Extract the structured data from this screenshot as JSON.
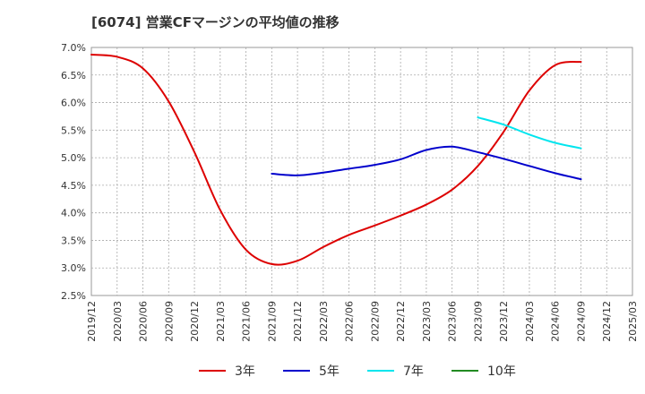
{
  "header": {
    "title": "[6074]  営業CFマージンの平均値の推移"
  },
  "chart_data": {
    "type": "line",
    "title": "[6074]  営業CFマージンの平均値の推移",
    "xlabel": "",
    "ylabel": "",
    "x_ticks": [
      "2019/12",
      "2020/03",
      "2020/06",
      "2020/09",
      "2020/12",
      "2021/03",
      "2021/06",
      "2021/09",
      "2021/12",
      "2022/03",
      "2022/06",
      "2022/09",
      "2022/12",
      "2023/03",
      "2023/06",
      "2023/09",
      "2023/12",
      "2024/03",
      "2024/06",
      "2024/09",
      "2024/12",
      "2025/03"
    ],
    "y_ticks": [
      "2.5%",
      "3.0%",
      "3.5%",
      "4.0%",
      "4.5%",
      "5.0%",
      "5.5%",
      "6.0%",
      "6.5%",
      "7.0%"
    ],
    "ylim": [
      2.5,
      7.0
    ],
    "grid": true,
    "legend_position": "bottom",
    "series": [
      {
        "name": "3年",
        "color": "#dd0000",
        "points": [
          [
            "2019/12",
            6.87
          ],
          [
            "2020/03",
            6.83
          ],
          [
            "2020/06",
            6.62
          ],
          [
            "2020/09",
            6.02
          ],
          [
            "2020/12",
            5.1
          ],
          [
            "2021/03",
            4.05
          ],
          [
            "2021/06",
            3.33
          ],
          [
            "2021/09",
            3.07
          ],
          [
            "2021/12",
            3.13
          ],
          [
            "2022/03",
            3.38
          ],
          [
            "2022/06",
            3.6
          ],
          [
            "2022/09",
            3.77
          ],
          [
            "2022/12",
            3.95
          ],
          [
            "2023/03",
            4.15
          ],
          [
            "2023/06",
            4.42
          ],
          [
            "2023/09",
            4.85
          ],
          [
            "2023/12",
            5.47
          ],
          [
            "2024/03",
            6.22
          ],
          [
            "2024/06",
            6.68
          ],
          [
            "2024/09",
            6.74
          ]
        ]
      },
      {
        "name": "5年",
        "color": "#0000cc",
        "points": [
          [
            "2021/09",
            4.71
          ],
          [
            "2021/12",
            4.68
          ],
          [
            "2022/03",
            4.73
          ],
          [
            "2022/06",
            4.8
          ],
          [
            "2022/09",
            4.87
          ],
          [
            "2022/12",
            4.97
          ],
          [
            "2023/03",
            5.14
          ],
          [
            "2023/06",
            5.2
          ],
          [
            "2023/09",
            5.1
          ],
          [
            "2023/12",
            4.98
          ],
          [
            "2024/03",
            4.85
          ],
          [
            "2024/06",
            4.72
          ],
          [
            "2024/09",
            4.61
          ]
        ]
      },
      {
        "name": "7年",
        "color": "#00e5ee",
        "points": [
          [
            "2023/09",
            5.73
          ],
          [
            "2023/12",
            5.6
          ],
          [
            "2024/03",
            5.42
          ],
          [
            "2024/06",
            5.27
          ],
          [
            "2024/09",
            5.17
          ]
        ]
      },
      {
        "name": "10年",
        "color": "#228b22",
        "points": []
      }
    ]
  }
}
